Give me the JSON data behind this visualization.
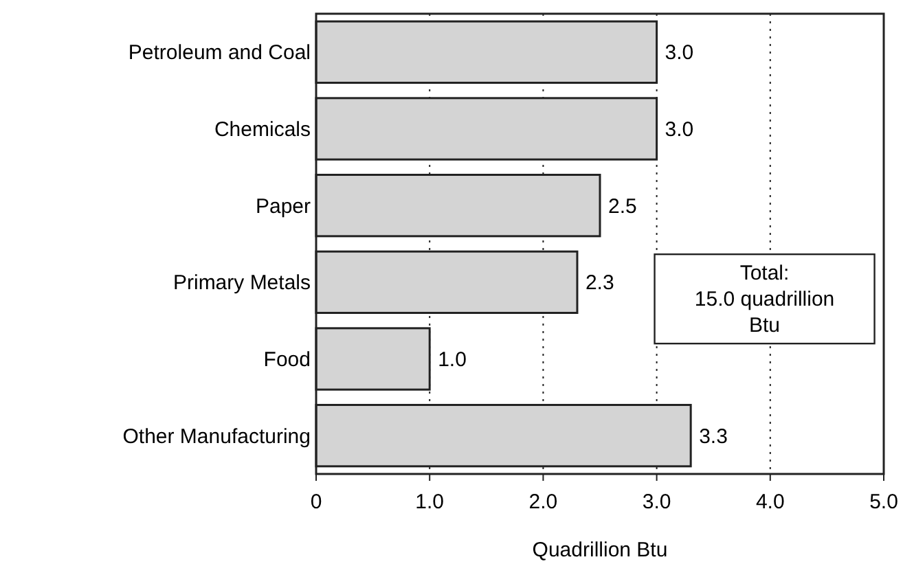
{
  "chart_data": {
    "type": "bar",
    "orientation": "horizontal",
    "xlabel": "Quadrillion Btu",
    "categories": [
      "Petroleum and Coal",
      "Chemicals",
      "Paper",
      "Primary Metals",
      "Food",
      "Other Manufacturing"
    ],
    "values": [
      3.0,
      3.0,
      2.5,
      2.3,
      1.0,
      3.3
    ],
    "value_labels": [
      "3.0",
      "3.0",
      "2.5",
      "2.3",
      "1.0",
      "3.3"
    ],
    "color": "#d4d4d4",
    "xlim": [
      0,
      5
    ],
    "xticks": [
      0,
      {
        "value": 1,
        "label": "1.0"
      },
      {
        "value": 2,
        "label": "2.0"
      },
      {
        "value": 3,
        "label": "3.0"
      },
      {
        "value": 4,
        "label": "4.0"
      },
      {
        "value": 5,
        "label": "5.0"
      }
    ],
    "grid": "x",
    "annotations": [
      {
        "text": "Total:\n15.0 quadrillion\nBtu"
      }
    ]
  }
}
